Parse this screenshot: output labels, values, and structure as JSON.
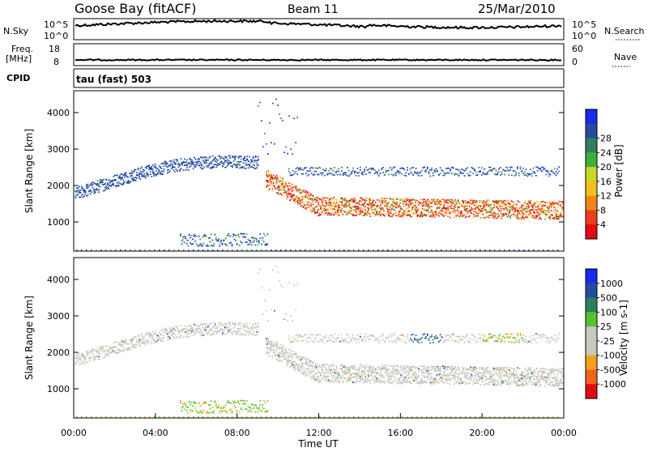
{
  "header": {
    "station": "Goose Bay (fitACF)",
    "beam": "Beam 11",
    "date": "25/Mar/2010"
  },
  "noise_panel": {
    "left_label": "N.Sky",
    "left_ticks": [
      "10^5",
      "10^0"
    ],
    "right_ticks": [
      "10^5",
      "10^0"
    ],
    "right_label": "N.Search"
  },
  "freq_panel": {
    "left_label_1": "Freq.",
    "left_label_2": "[MHz]",
    "left_ticks": [
      "18",
      "8"
    ],
    "right_ticks": [
      "60",
      "0"
    ],
    "right_label": "Nave"
  },
  "cpid_panel": {
    "label": "CPID",
    "text": "tau (fast) 503"
  },
  "chart_data": [
    {
      "type": "heatmap",
      "title": "",
      "xlabel": "",
      "ylabel": "Slant Range [km]",
      "ylim": [
        200,
        4600
      ],
      "yticks": [
        1000,
        2000,
        3000,
        4000
      ],
      "colorbar_label": "Power [dB]",
      "colorbar_ticks": [
        "4",
        "8",
        "12",
        "16",
        "20",
        "24",
        "28"
      ],
      "colorbar_colors": [
        "#1a2ae8",
        "#234c9e",
        "#2f7f5e",
        "#3fae3a",
        "#c9d62a",
        "#f1c21e",
        "#f0861a",
        "#e8401a",
        "#e00c10"
      ]
    },
    {
      "type": "heatmap",
      "title": "",
      "xlabel": "Time UT",
      "ylabel": "Slant Range [km]",
      "ylim": [
        200,
        4600
      ],
      "yticks": [
        1000,
        2000,
        3000,
        4000
      ],
      "xticks": [
        "00:00",
        "04:00",
        "08:00",
        "12:00",
        "16:00",
        "20:00",
        "00:00"
      ],
      "colorbar_label": "Velocity [m s-1]",
      "colorbar_ticks": [
        "1000",
        "500",
        "100",
        "25",
        "-25",
        "-100",
        "-500",
        "-1000"
      ],
      "colorbar_colors": [
        "#1a2ae8",
        "#234c9e",
        "#2f7f5e",
        "#54c232",
        "#c8c8c0",
        "#c8c8c0",
        "#f0a31c",
        "#f0661a",
        "#e00c10"
      ]
    }
  ]
}
